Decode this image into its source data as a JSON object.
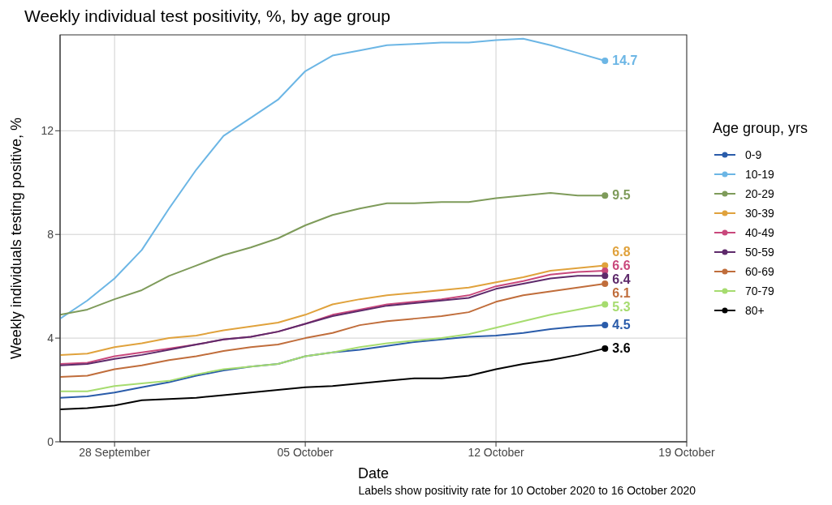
{
  "chart_data": {
    "type": "line",
    "title": "Weekly individual test positivity, %, by age group",
    "xlabel": "Date",
    "ylabel": "Weekly individuals testing positive, %",
    "legend_title": "Age group, yrs",
    "annotations": [
      "Labels show positivity rate for 10 October 2020 to 16 October 2020"
    ],
    "x": [
      "2020-09-26",
      "2020-09-27",
      "2020-09-28",
      "2020-09-29",
      "2020-09-30",
      "2020-10-01",
      "2020-10-02",
      "2020-10-03",
      "2020-10-04",
      "2020-10-05",
      "2020-10-06",
      "2020-10-07",
      "2020-10-08",
      "2020-10-09",
      "2020-10-10",
      "2020-10-11",
      "2020-10-12",
      "2020-10-13",
      "2020-10-14",
      "2020-10-15",
      "2020-10-16"
    ],
    "xlim": [
      "2020-09-26",
      "2020-10-19"
    ],
    "xticks": [
      {
        "value": "2020-09-28",
        "label": "28 September"
      },
      {
        "value": "2020-10-05",
        "label": "05 October"
      },
      {
        "value": "2020-10-12",
        "label": "12 October"
      },
      {
        "value": "2020-10-19",
        "label": "19 October"
      }
    ],
    "ylim": [
      0,
      15.7
    ],
    "yticks": [
      0,
      4,
      8,
      12
    ],
    "grid": true,
    "legend": "right",
    "line_style": "solid",
    "series": [
      {
        "name": "0-9",
        "color": "#2a5caa",
        "values": [
          1.7,
          1.75,
          1.9,
          2.1,
          2.3,
          2.55,
          2.75,
          2.9,
          3.0,
          3.3,
          3.45,
          3.55,
          3.7,
          3.85,
          3.95,
          4.05,
          4.1,
          4.2,
          4.35,
          4.45,
          4.5
        ],
        "value_labels": [
          null,
          null,
          null,
          null,
          null,
          null,
          null,
          null,
          null,
          null,
          null,
          null,
          null,
          null,
          null,
          null,
          null,
          null,
          null,
          null,
          "4.5"
        ]
      },
      {
        "name": "10-19",
        "color": "#6cb6e5",
        "values": [
          4.75,
          5.45,
          6.3,
          7.4,
          9.0,
          10.5,
          11.8,
          12.5,
          13.2,
          14.3,
          14.9,
          15.1,
          15.3,
          15.35,
          15.4,
          15.4,
          15.5,
          15.55,
          15.3,
          15.0,
          14.7
        ],
        "value_labels": [
          null,
          null,
          null,
          null,
          null,
          null,
          null,
          null,
          null,
          null,
          null,
          null,
          null,
          null,
          null,
          null,
          null,
          null,
          null,
          null,
          "14.7"
        ]
      },
      {
        "name": "20-29",
        "color": "#7e9b5a",
        "values": [
          4.9,
          5.1,
          5.5,
          5.85,
          6.4,
          6.8,
          7.2,
          7.5,
          7.85,
          8.35,
          8.75,
          9.0,
          9.2,
          9.2,
          9.25,
          9.25,
          9.4,
          9.5,
          9.6,
          9.5,
          9.5
        ],
        "value_labels": [
          null,
          null,
          null,
          null,
          null,
          null,
          null,
          null,
          null,
          null,
          null,
          null,
          null,
          null,
          null,
          null,
          null,
          null,
          null,
          null,
          "9.5"
        ]
      },
      {
        "name": "30-39",
        "color": "#e0a23c",
        "values": [
          3.35,
          3.4,
          3.65,
          3.8,
          4.0,
          4.1,
          4.3,
          4.45,
          4.6,
          4.9,
          5.3,
          5.5,
          5.65,
          5.75,
          5.85,
          5.95,
          6.15,
          6.35,
          6.6,
          6.7,
          6.8
        ],
        "value_labels": [
          null,
          null,
          null,
          null,
          null,
          null,
          null,
          null,
          null,
          null,
          null,
          null,
          null,
          null,
          null,
          null,
          null,
          null,
          null,
          null,
          "6.8"
        ]
      },
      {
        "name": "40-49",
        "color": "#c9487c",
        "values": [
          3.0,
          3.05,
          3.3,
          3.45,
          3.6,
          3.75,
          3.95,
          4.05,
          4.25,
          4.55,
          4.9,
          5.1,
          5.3,
          5.4,
          5.5,
          5.65,
          6.0,
          6.2,
          6.45,
          6.55,
          6.6
        ],
        "value_labels": [
          null,
          null,
          null,
          null,
          null,
          null,
          null,
          null,
          null,
          null,
          null,
          null,
          null,
          null,
          null,
          null,
          null,
          null,
          null,
          null,
          "6.6"
        ]
      },
      {
        "name": "50-59",
        "color": "#5e2a6b",
        "values": [
          2.95,
          3.0,
          3.2,
          3.35,
          3.55,
          3.75,
          3.95,
          4.05,
          4.25,
          4.55,
          4.85,
          5.05,
          5.25,
          5.35,
          5.45,
          5.55,
          5.9,
          6.1,
          6.3,
          6.4,
          6.4
        ],
        "value_labels": [
          null,
          null,
          null,
          null,
          null,
          null,
          null,
          null,
          null,
          null,
          null,
          null,
          null,
          null,
          null,
          null,
          null,
          null,
          null,
          null,
          "6.4"
        ]
      },
      {
        "name": "60-69",
        "color": "#c06d3b",
        "values": [
          2.5,
          2.55,
          2.8,
          2.95,
          3.15,
          3.3,
          3.5,
          3.65,
          3.75,
          4.0,
          4.2,
          4.5,
          4.65,
          4.75,
          4.85,
          5.0,
          5.4,
          5.65,
          5.8,
          5.95,
          6.1
        ],
        "value_labels": [
          null,
          null,
          null,
          null,
          null,
          null,
          null,
          null,
          null,
          null,
          null,
          null,
          null,
          null,
          null,
          null,
          null,
          null,
          null,
          null,
          "6.1"
        ]
      },
      {
        "name": "70-79",
        "color": "#a6dc6f",
        "values": [
          1.95,
          1.95,
          2.15,
          2.25,
          2.35,
          2.6,
          2.8,
          2.9,
          3.0,
          3.3,
          3.45,
          3.65,
          3.8,
          3.9,
          4.0,
          4.15,
          4.4,
          4.65,
          4.9,
          5.1,
          5.3
        ],
        "value_labels": [
          null,
          null,
          null,
          null,
          null,
          null,
          null,
          null,
          null,
          null,
          null,
          null,
          null,
          null,
          null,
          null,
          null,
          null,
          null,
          null,
          "5.3"
        ]
      },
      {
        "name": "80+",
        "color": "#000000",
        "values": [
          1.25,
          1.3,
          1.4,
          1.6,
          1.65,
          1.7,
          1.8,
          1.9,
          2.0,
          2.1,
          2.15,
          2.25,
          2.35,
          2.45,
          2.45,
          2.55,
          2.8,
          3.0,
          3.15,
          3.35,
          3.6
        ],
        "value_labels": [
          null,
          null,
          null,
          null,
          null,
          null,
          null,
          null,
          null,
          null,
          null,
          null,
          null,
          null,
          null,
          null,
          null,
          null,
          null,
          null,
          "3.6"
        ]
      }
    ]
  }
}
